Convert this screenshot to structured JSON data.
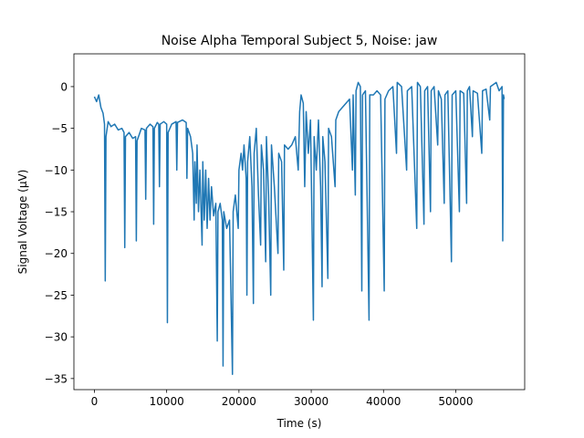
{
  "chart_data": {
    "type": "line",
    "title": "Noise Alpha Temporal Subject 5, Noise: jaw",
    "x_label": "Time (s)",
    "y_label": "Signal Voltage (μV)",
    "color": "#1f77b4",
    "xlim": [
      -2835,
      59535
    ],
    "ylim": [
      -36.33,
      3.93
    ],
    "xticks": [
      0,
      10000,
      20000,
      30000,
      40000,
      50000
    ],
    "yticks": [
      {
        "value": -35,
        "label": "−35"
      },
      {
        "value": -30,
        "label": "−30"
      },
      {
        "value": -25,
        "label": "−25"
      },
      {
        "value": -20,
        "label": "−20"
      },
      {
        "value": -15,
        "label": "−15"
      },
      {
        "value": -10,
        "label": "−10"
      },
      {
        "value": -5,
        "label": "−5"
      },
      0
    ],
    "x": [
      0,
      300,
      600,
      900,
      1200,
      1400,
      1500,
      1600,
      1900,
      2300,
      2800,
      3300,
      3800,
      4100,
      4200,
      4300,
      4800,
      5300,
      5700,
      5800,
      5900,
      6500,
      7000,
      7100,
      7200,
      7700,
      8100,
      8200,
      8300,
      8700,
      8900,
      9000,
      9100,
      9600,
      10000,
      10100,
      10200,
      10700,
      11300,
      11400,
      11500,
      12200,
      12700,
      12800,
      12900,
      13300,
      13600,
      13800,
      13900,
      14100,
      14200,
      14400,
      14600,
      14900,
      15000,
      15200,
      15400,
      15600,
      15800,
      16000,
      16200,
      16500,
      16800,
      17000,
      17100,
      17400,
      17700,
      17800,
      17900,
      18300,
      18700,
      19100,
      19200,
      19500,
      19900,
      20000,
      20300,
      20500,
      20700,
      21000,
      21100,
      21200,
      21500,
      21800,
      22000,
      22100,
      22400,
      22700,
      23000,
      23100,
      23400,
      23700,
      23800,
      24100,
      24400,
      24500,
      24900,
      25400,
      25500,
      25900,
      26200,
      26300,
      26800,
      27300,
      27800,
      28200,
      28400,
      28600,
      28900,
      29100,
      29300,
      29600,
      29900,
      30300,
      30400,
      30700,
      31000,
      31300,
      31500,
      31600,
      31900,
      32300,
      32400,
      32800,
      33300,
      33400,
      33800,
      34300,
      34800,
      35300,
      35700,
      35800,
      36100,
      36200,
      36500,
      36800,
      37000,
      37100,
      37500,
      38000,
      38100,
      38600,
      39100,
      39600,
      40100,
      40200,
      40700,
      41300,
      41800,
      41900,
      42500,
      43200,
      43300,
      43900,
      44600,
      44700,
      45100,
      45600,
      45700,
      46100,
      46500,
      46600,
      47000,
      47500,
      47600,
      48000,
      48400,
      48500,
      48900,
      49400,
      49500,
      50000,
      50500,
      50600,
      51100,
      51500,
      51600,
      51900,
      52300,
      52400,
      53000,
      53600,
      53700,
      54200,
      54700,
      54800,
      55600,
      56000,
      56400,
      56500,
      56600,
      56700
    ],
    "values": [
      -1.2,
      -1.8,
      -1.0,
      -2.5,
      -3.2,
      -4.5,
      -23.3,
      -6,
      -4.2,
      -4.8,
      -4.5,
      -5.2,
      -5.0,
      -5.5,
      -19.3,
      -6,
      -5.5,
      -6.2,
      -6,
      -18.5,
      -6.5,
      -5,
      -5.2,
      -13.5,
      -5,
      -4.5,
      -4.8,
      -16.5,
      -5,
      -4.3,
      -4.5,
      -12,
      -4.5,
      -4.2,
      -4.5,
      -28.3,
      -5.5,
      -4.5,
      -4.2,
      -10,
      -4.3,
      -4,
      -4.3,
      -11,
      -5,
      -6,
      -8,
      -16,
      -9,
      -14,
      -7,
      -15,
      -10,
      -19,
      -9,
      -16,
      -10,
      -17,
      -11,
      -16,
      -12,
      -15.5,
      -14,
      -30.5,
      -15,
      -14,
      -16,
      -33.5,
      -15,
      -17,
      -16,
      -34.5,
      -15,
      -13,
      -17,
      -10,
      -8,
      -10,
      -7,
      -11,
      -25,
      -9,
      -6,
      -12,
      -26,
      -8,
      -5,
      -13,
      -19,
      -7,
      -10,
      -21,
      -6,
      -13,
      -25,
      -7,
      -12,
      -20,
      -8,
      -9,
      -22,
      -7,
      -7.5,
      -7,
      -6,
      -10,
      -3,
      -1,
      -2,
      -12,
      -3,
      -8,
      -4,
      -28,
      -6,
      -10,
      -4,
      -12,
      -24,
      -6,
      -9,
      -23,
      -5,
      -6,
      -12,
      -4,
      -3,
      -2.5,
      -2,
      -1.5,
      -10,
      -1,
      -13,
      -0.5,
      0.5,
      0,
      -24.5,
      -1,
      -0.5,
      -28,
      -1,
      -1,
      -0.5,
      -1,
      -24.5,
      -1.5,
      -0.5,
      0,
      -8,
      0.5,
      0,
      -10,
      -0.5,
      0,
      -17,
      0.5,
      0,
      -16.5,
      -0.5,
      0,
      -15,
      -0.5,
      0,
      -7,
      -0.5,
      -1.5,
      -14,
      -1,
      -0.5,
      -21,
      -1,
      -0.5,
      -15,
      -0.5,
      -0.8,
      -14,
      -0.5,
      0,
      -6,
      -0.5,
      -0.8,
      -8,
      -0.5,
      -0.3,
      -4,
      0,
      0.5,
      -0.5,
      0,
      -18.5,
      -1,
      -1.5
    ]
  }
}
